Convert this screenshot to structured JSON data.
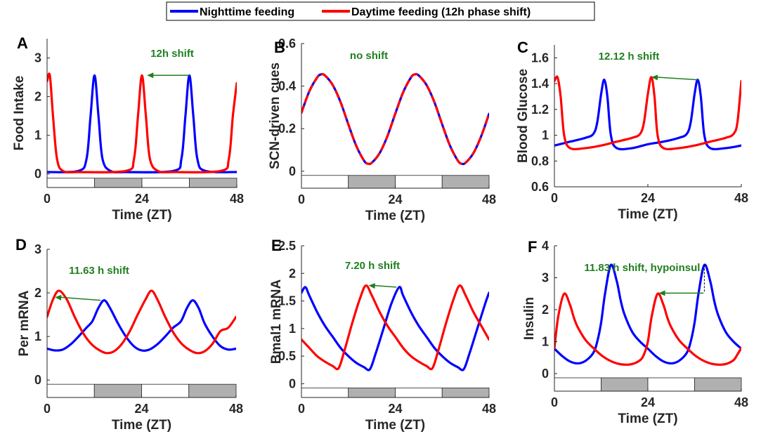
{
  "legend": {
    "items": [
      {
        "label": "Nighttime feeding",
        "color": "#0000ff"
      },
      {
        "label": "Daytime feeding (12h phase shift)",
        "color": "#ff0000"
      }
    ]
  },
  "colors": {
    "night": "#0000ff",
    "day": "#ff0000",
    "annotation": "#1f7f1f",
    "dark_bar": "#b0b0b0",
    "light_bar": "#ffffff"
  },
  "chart_data": [
    {
      "panel": "A",
      "type": "line",
      "xlabel": "Time (ZT)",
      "ylabel": "Food Intake",
      "xlim": [
        0,
        48
      ],
      "ylim": [
        -0.35,
        3.5
      ],
      "xticks": [
        "0",
        "24",
        "48"
      ],
      "yticks": [
        "0",
        "1",
        "2",
        "3"
      ],
      "annotation": "12h shift",
      "series": [
        {
          "name": "Nighttime feeding",
          "color": "#0000ff",
          "x": [
            0,
            8,
            10,
            11,
            12,
            13,
            14,
            16,
            20,
            32,
            34,
            35,
            36,
            37,
            38,
            40,
            48
          ],
          "y": [
            0.05,
            0.08,
            0.4,
            1.5,
            2.55,
            1.5,
            0.4,
            0.08,
            0.05,
            0.08,
            0.4,
            1.5,
            2.55,
            1.5,
            0.4,
            0.08,
            0.05
          ]
        },
        {
          "name": "Daytime feeding (12h phase shift)",
          "color": "#ff0000",
          "x": [
            0,
            0.7,
            1.5,
            2.5,
            4,
            8,
            20,
            22,
            23,
            24,
            25,
            26,
            28,
            32,
            44,
            46,
            47,
            48
          ],
          "y": [
            2.4,
            2.55,
            1.5,
            0.4,
            0.08,
            0.05,
            0.08,
            0.4,
            1.5,
            2.55,
            1.5,
            0.4,
            0.08,
            0.05,
            0.08,
            0.4,
            1.5,
            2.35
          ]
        }
      ]
    },
    {
      "panel": "B",
      "type": "line",
      "xlabel": "Time (ZT)",
      "ylabel": "SCN-driven cues",
      "xlim": [
        0,
        48
      ],
      "ylim": [
        -0.08,
        0.6
      ],
      "xticks": [
        "0",
        "24",
        "48"
      ],
      "yticks": [
        "0",
        "0.2",
        "0.4",
        "0.6"
      ],
      "annotation": "no shift",
      "series": [
        {
          "name": "Nighttime feeding",
          "color": "#0000ff",
          "x": [
            0,
            2,
            4,
            5,
            6,
            8,
            10,
            12,
            14,
            16,
            17,
            18,
            20,
            22,
            24,
            26,
            28,
            29,
            30,
            32,
            34,
            36,
            38,
            40,
            41,
            42,
            44,
            46,
            48
          ],
          "y": [
            0.275,
            0.375,
            0.44,
            0.455,
            0.45,
            0.405,
            0.325,
            0.22,
            0.12,
            0.05,
            0.035,
            0.04,
            0.085,
            0.165,
            0.27,
            0.37,
            0.44,
            0.455,
            0.45,
            0.405,
            0.325,
            0.22,
            0.12,
            0.05,
            0.035,
            0.04,
            0.085,
            0.165,
            0.27
          ]
        },
        {
          "name": "Daytime feeding (12h phase shift)",
          "color": "#ff0000",
          "dashed": true,
          "x": [
            0,
            2,
            4,
            5,
            6,
            8,
            10,
            12,
            14,
            16,
            17,
            18,
            20,
            22,
            24,
            26,
            28,
            29,
            30,
            32,
            34,
            36,
            38,
            40,
            41,
            42,
            44,
            46,
            48
          ],
          "y": [
            0.275,
            0.375,
            0.44,
            0.455,
            0.45,
            0.405,
            0.325,
            0.22,
            0.12,
            0.05,
            0.035,
            0.04,
            0.085,
            0.165,
            0.27,
            0.37,
            0.44,
            0.455,
            0.45,
            0.405,
            0.325,
            0.22,
            0.12,
            0.05,
            0.035,
            0.04,
            0.085,
            0.165,
            0.27
          ]
        }
      ]
    },
    {
      "panel": "C",
      "type": "line",
      "xlabel": "Time (ZT)",
      "ylabel": "Blood Glucose",
      "xlim": [
        0,
        48
      ],
      "ylim": [
        0.6,
        1.7
      ],
      "xticks": [
        "0",
        "24",
        "48"
      ],
      "yticks": [
        "0.6",
        "0.8",
        "1",
        "1.2",
        "1.4",
        "1.6"
      ],
      "annotation": "12.12 h shift",
      "series": [
        {
          "name": "Nighttime feeding",
          "color": "#0000ff",
          "x": [
            0,
            4,
            8,
            10,
            11,
            12,
            12.8,
            13.6,
            14.5,
            16,
            20,
            24,
            28,
            32,
            34,
            35,
            36,
            36.8,
            37.6,
            38.5,
            40,
            44,
            48
          ],
          "y": [
            0.92,
            0.95,
            0.98,
            1.01,
            1.1,
            1.32,
            1.43,
            1.3,
            1.0,
            0.9,
            0.9,
            0.93,
            0.95,
            0.98,
            1.01,
            1.1,
            1.32,
            1.43,
            1.3,
            1.0,
            0.9,
            0.9,
            0.92
          ]
        },
        {
          "name": "Daytime feeding (12h phase shift)",
          "color": "#ff0000",
          "x": [
            0,
            0.8,
            1.6,
            2.5,
            4,
            8,
            12,
            16,
            20,
            22,
            23,
            24,
            24.9,
            25.7,
            26.5,
            28,
            32,
            36,
            40,
            44,
            46,
            47,
            48
          ],
          "y": [
            1.42,
            1.45,
            1.3,
            1.0,
            0.9,
            0.9,
            0.92,
            0.95,
            0.98,
            1.01,
            1.1,
            1.32,
            1.45,
            1.3,
            1.0,
            0.9,
            0.9,
            0.92,
            0.95,
            0.98,
            1.01,
            1.1,
            1.42
          ]
        }
      ]
    },
    {
      "panel": "D",
      "type": "line",
      "xlabel": "Time (ZT)",
      "ylabel": "Per mRNA",
      "xlim": [
        0,
        48
      ],
      "ylim": [
        -0.4,
        3
      ],
      "xticks": [
        "0",
        "24",
        "48"
      ],
      "yticks": [
        "0",
        "1",
        "2",
        "3"
      ],
      "annotation": "11.63 h shift",
      "series": [
        {
          "name": "Nighttime feeding",
          "color": "#0000ff",
          "x": [
            0,
            2,
            4,
            6,
            8,
            10,
            11.5,
            13,
            14.5,
            16,
            18,
            20,
            22,
            24,
            26,
            28,
            30,
            32,
            34,
            35.5,
            37,
            38.5,
            40,
            42,
            44,
            46,
            48
          ],
          "y": [
            0.72,
            0.68,
            0.7,
            0.82,
            1.0,
            1.2,
            1.35,
            1.65,
            1.83,
            1.65,
            1.3,
            1.0,
            0.78,
            0.68,
            0.7,
            0.82,
            1.0,
            1.2,
            1.35,
            1.65,
            1.83,
            1.65,
            1.3,
            1.0,
            0.78,
            0.7,
            0.72
          ]
        },
        {
          "name": "Daytime feeding (12h phase shift)",
          "color": "#ff0000",
          "x": [
            0,
            1.5,
            3,
            5,
            7,
            9,
            11,
            13,
            15,
            17,
            19,
            21,
            23,
            25,
            26.5,
            28,
            30,
            32,
            34,
            36,
            38,
            40,
            42,
            44,
            46,
            48
          ],
          "y": [
            1.45,
            1.85,
            2.05,
            1.85,
            1.45,
            1.1,
            0.85,
            0.7,
            0.62,
            0.66,
            0.83,
            1.12,
            1.5,
            1.85,
            2.05,
            1.85,
            1.45,
            1.1,
            0.85,
            0.7,
            0.62,
            0.66,
            0.83,
            1.12,
            1.2,
            1.45
          ]
        }
      ]
    },
    {
      "panel": "E",
      "type": "line",
      "xlabel": "Time (ZT)",
      "ylabel": "Bmal1 mRNA",
      "xlim": [
        0,
        48
      ],
      "ylim": [
        -0.25,
        2.5
      ],
      "xticks": [
        "0",
        "24",
        "48"
      ],
      "yticks": [
        "0",
        "0.5",
        "1",
        "1.5",
        "2",
        "2.5"
      ],
      "annotation": "7.20 h shift",
      "series": [
        {
          "name": "Nighttime feeding",
          "color": "#0000ff",
          "x": [
            0,
            1,
            2,
            4,
            6,
            8,
            10,
            12,
            14,
            16,
            17.5,
            19,
            21,
            23,
            25,
            26,
            28,
            30,
            32,
            34,
            36,
            38,
            40,
            41.5,
            43,
            45,
            47,
            48
          ],
          "y": [
            1.65,
            1.75,
            1.6,
            1.3,
            1.05,
            0.85,
            0.65,
            0.5,
            0.38,
            0.3,
            0.26,
            0.55,
            1.0,
            1.45,
            1.75,
            1.6,
            1.3,
            1.05,
            0.85,
            0.65,
            0.5,
            0.38,
            0.3,
            0.26,
            0.55,
            1.0,
            1.45,
            1.65
          ]
        },
        {
          "name": "Daytime feeding (12h phase shift)",
          "color": "#ff0000",
          "x": [
            0,
            2,
            4,
            6,
            8,
            9.5,
            11,
            13,
            15,
            16.5,
            18,
            20,
            22,
            24,
            26,
            28,
            30,
            32,
            33.5,
            35,
            37,
            39,
            40.5,
            42,
            44,
            46,
            48
          ],
          "y": [
            0.8,
            0.65,
            0.5,
            0.4,
            0.32,
            0.28,
            0.6,
            1.1,
            1.55,
            1.78,
            1.6,
            1.3,
            1.05,
            0.85,
            0.65,
            0.5,
            0.4,
            0.32,
            0.28,
            0.6,
            1.1,
            1.55,
            1.78,
            1.6,
            1.3,
            1.05,
            0.8
          ]
        }
      ]
    },
    {
      "panel": "F",
      "type": "line",
      "xlabel": "Time (ZT)",
      "ylabel": "Insulin",
      "xlim": [
        0,
        48
      ],
      "ylim": [
        -0.55,
        4
      ],
      "xticks": [
        "0",
        "24",
        "48"
      ],
      "yticks": [
        "0",
        "1",
        "2",
        "3",
        "4"
      ],
      "annotation": "11.83 h shift, hypoinsul.",
      "series": [
        {
          "name": "Nighttime feeding",
          "color": "#0000ff",
          "x": [
            0,
            2,
            4,
            6,
            8,
            10,
            11,
            12,
            13,
            14.5,
            16,
            17,
            18,
            20,
            22,
            24,
            26,
            28,
            30,
            32,
            34,
            35,
            36,
            37,
            38.5,
            40,
            41,
            42,
            44,
            46,
            48
          ],
          "y": [
            0.78,
            0.55,
            0.38,
            0.32,
            0.4,
            0.65,
            1.0,
            1.6,
            2.5,
            3.4,
            2.9,
            2.3,
            1.85,
            1.3,
            1.0,
            0.78,
            0.55,
            0.38,
            0.32,
            0.4,
            0.65,
            1.0,
            1.6,
            2.5,
            3.4,
            2.9,
            2.3,
            1.85,
            1.3,
            1.0,
            0.78
          ]
        },
        {
          "name": "Daytime feeding (12h phase shift)",
          "color": "#ff0000",
          "x": [
            0,
            1,
            2.5,
            4,
            5,
            6,
            8,
            10,
            12,
            14,
            16,
            18,
            20,
            22,
            23,
            24,
            25,
            26.5,
            28,
            29,
            30,
            32,
            34,
            36,
            38,
            40,
            42,
            44,
            46,
            47,
            48
          ],
          "y": [
            0.8,
            1.8,
            2.5,
            2.15,
            1.75,
            1.45,
            1.05,
            0.8,
            0.58,
            0.42,
            0.32,
            0.28,
            0.3,
            0.42,
            0.6,
            1.0,
            1.8,
            2.5,
            2.15,
            1.75,
            1.45,
            1.05,
            0.8,
            0.58,
            0.42,
            0.32,
            0.28,
            0.3,
            0.42,
            0.6,
            0.8
          ]
        }
      ]
    }
  ]
}
